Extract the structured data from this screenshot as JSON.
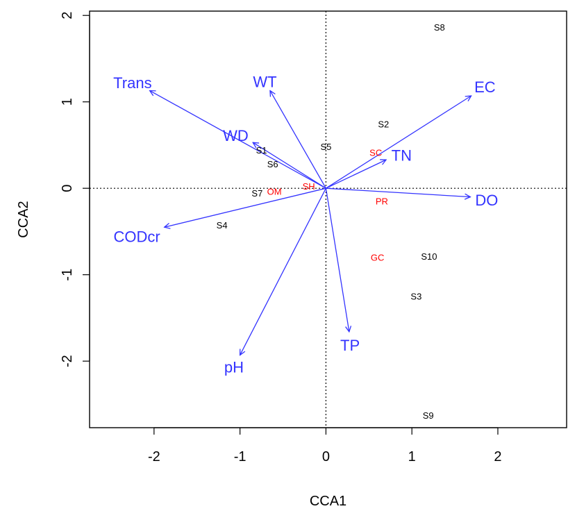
{
  "chart_data": {
    "type": "scatter",
    "title": "",
    "xlabel": "CCA1",
    "ylabel": "CCA2",
    "xlim": [
      -2.75,
      2.8
    ],
    "ylim": [
      -2.77,
      2.05
    ],
    "x_ticks": [
      -2,
      -1,
      0,
      1,
      2
    ],
    "y_ticks": [
      -2,
      -1,
      0,
      1,
      2
    ],
    "x_tick_labels": [
      "-2",
      "-1",
      "0",
      "1",
      "2"
    ],
    "y_tick_labels": [
      "-2",
      "-1",
      "0",
      "1",
      "2"
    ],
    "reference_lines": {
      "x": 0,
      "y": 0,
      "style": "dotted"
    },
    "colors": {
      "arrows": "#3333ff",
      "sites": "#000000",
      "groups": "#ff0000",
      "frame": "#000000"
    },
    "arrows": [
      {
        "name": "Trans",
        "x": -2.05,
        "y": 1.13,
        "label_x": -2.25,
        "label_y": 1.22
      },
      {
        "name": "WT",
        "x": -0.65,
        "y": 1.13,
        "label_x": -0.71,
        "label_y": 1.23
      },
      {
        "name": "EC",
        "x": 1.69,
        "y": 1.07,
        "label_x": 1.85,
        "label_y": 1.17
      },
      {
        "name": "WD",
        "x": -0.85,
        "y": 0.53,
        "label_x": -1.05,
        "label_y": 0.61
      },
      {
        "name": "TN",
        "x": 0.7,
        "y": 0.33,
        "label_x": 0.88,
        "label_y": 0.38
      },
      {
        "name": "DO",
        "x": 1.68,
        "y": -0.1,
        "label_x": 1.87,
        "label_y": -0.14
      },
      {
        "name": "CODcr",
        "x": -1.88,
        "y": -0.45,
        "label_x": -2.2,
        "label_y": -0.56
      },
      {
        "name": "pH",
        "x": -1.0,
        "y": -1.93,
        "label_x": -1.07,
        "label_y": -2.07
      },
      {
        "name": "TP",
        "x": 0.27,
        "y": -1.66,
        "label_x": 0.28,
        "label_y": -1.82
      }
    ],
    "sites": [
      {
        "label": "S8",
        "x": 1.32,
        "y": 1.86
      },
      {
        "label": "S2",
        "x": 0.67,
        "y": 0.74
      },
      {
        "label": "S5",
        "x": 0.0,
        "y": 0.48
      },
      {
        "label": "S1",
        "x": -0.75,
        "y": 0.44
      },
      {
        "label": "S6",
        "x": -0.62,
        "y": 0.28
      },
      {
        "label": "S7",
        "x": -0.8,
        "y": -0.06
      },
      {
        "label": "S4",
        "x": -1.21,
        "y": -0.43
      },
      {
        "label": "S10",
        "x": 1.2,
        "y": -0.79
      },
      {
        "label": "S3",
        "x": 1.05,
        "y": -1.25
      },
      {
        "label": "S9",
        "x": 1.19,
        "y": -2.63
      }
    ],
    "groups": [
      {
        "label": "SC",
        "x": 0.58,
        "y": 0.41
      },
      {
        "label": "OM",
        "x": -0.6,
        "y": -0.04
      },
      {
        "label": "SH",
        "x": -0.2,
        "y": 0.02
      },
      {
        "label": "PR",
        "x": 0.65,
        "y": -0.15
      },
      {
        "label": "GC",
        "x": 0.6,
        "y": -0.8
      }
    ]
  }
}
